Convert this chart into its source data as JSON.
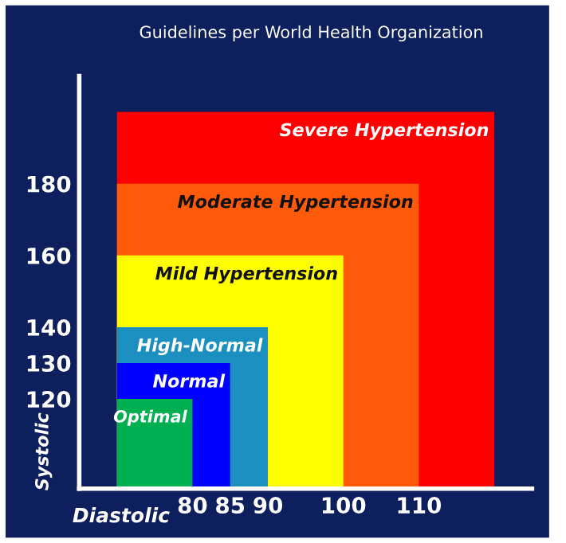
{
  "chart_data": {
    "type": "area",
    "title": "Guidelines per World Health Organization",
    "xlabel": "Diastolic",
    "ylabel": "Systolic",
    "series": [
      {
        "name": "Severe Hypertension",
        "color": "#ff0000",
        "x": [
          70,
          120
        ],
        "values": [
          200,
          200
        ]
      },
      {
        "name": "Moderate Hypertension",
        "color": "#ff5a0a",
        "x": [
          70,
          110
        ],
        "values": [
          180,
          180
        ]
      },
      {
        "name": "Mild Hypertension",
        "color": "#ffff00",
        "x": [
          70,
          100
        ],
        "values": [
          160,
          160
        ]
      },
      {
        "name": "High-Normal",
        "color": "#1a8fc0",
        "x": [
          70,
          90
        ],
        "values": [
          140,
          140
        ]
      },
      {
        "name": "Normal",
        "color": "#0000ff",
        "x": [
          70,
          85
        ],
        "values": [
          130,
          130
        ]
      },
      {
        "name": "Optimal",
        "color": "#00b050",
        "x": [
          70,
          80
        ],
        "values": [
          120,
          120
        ]
      }
    ],
    "xlim": [
      65,
      125
    ],
    "ylim": [
      95,
      210
    ],
    "xticks": [
      80,
      85,
      90,
      100,
      110
    ],
    "yticks": [
      120,
      130,
      140,
      160,
      180
    ],
    "grid": false,
    "legend": false
  }
}
